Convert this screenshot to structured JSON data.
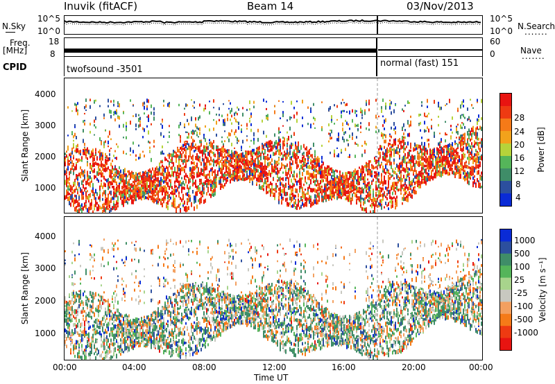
{
  "header": {
    "site": "Inuvik (fitACF)",
    "beam": "Beam 14",
    "date": "03/Nov/2013"
  },
  "strip_labels": {
    "nsky": "N.Sky",
    "nsky_ticks": [
      "10^5",
      "10^0"
    ],
    "nsearch": "N.Search",
    "nsearch_ticks": [
      "10^5",
      "10^0"
    ],
    "freq": "Freq.",
    "freq_unit": "[MHz]",
    "freq_ticks": [
      "18",
      "8"
    ],
    "nave": "Nave",
    "nave_ticks": [
      "60",
      "0"
    ],
    "cpid": "CPID",
    "cpid_1": "twofsound -3501",
    "cpid_2": "normal (fast) 151",
    "dots": "......."
  },
  "chart_data": [
    {
      "type": "heatmap",
      "name": "power-panel",
      "ylabel": "Slant Range [km]",
      "y_ticks": [
        "1000",
        "2000",
        "3000",
        "4000"
      ],
      "ylim": [
        200,
        4500
      ],
      "x_ticks": [
        "00:00",
        "04:00",
        "08:00",
        "12:00",
        "16:00",
        "20:00",
        "00:00"
      ],
      "colorbar_label": "Power [dB]",
      "colorbar_ticks": [
        "4",
        "8",
        "12",
        "16",
        "20",
        "24",
        "28"
      ],
      "colors": [
        "#0a2bd6",
        "#2c4f9e",
        "#3f8d68",
        "#55b55a",
        "#b6d33a",
        "#f2a21b",
        "#f57a18",
        "#ee3a12",
        "#e81411"
      ]
    },
    {
      "type": "heatmap",
      "name": "velocity-panel",
      "ylabel": "Slant Range [km]",
      "y_ticks": [
        "1000",
        "2000",
        "3000",
        "4000"
      ],
      "ylim": [
        200,
        4500
      ],
      "x_ticks": [
        "00:00",
        "04:00",
        "08:00",
        "12:00",
        "16:00",
        "20:00",
        "00:00"
      ],
      "xlabel": "Time UT",
      "colorbar_label": "Velocity [m s⁻¹]",
      "colorbar_ticks": [
        "1000",
        "500",
        "100",
        "25",
        "-25",
        "-100",
        "-500",
        "-1000"
      ],
      "colors": [
        "#0a2bd6",
        "#2c4f9e",
        "#3f8d68",
        "#55b55a",
        "#a8d48c",
        "#c8c8c0",
        "#f3a060",
        "#f57a18",
        "#ee3a12",
        "#e81411"
      ]
    }
  ]
}
